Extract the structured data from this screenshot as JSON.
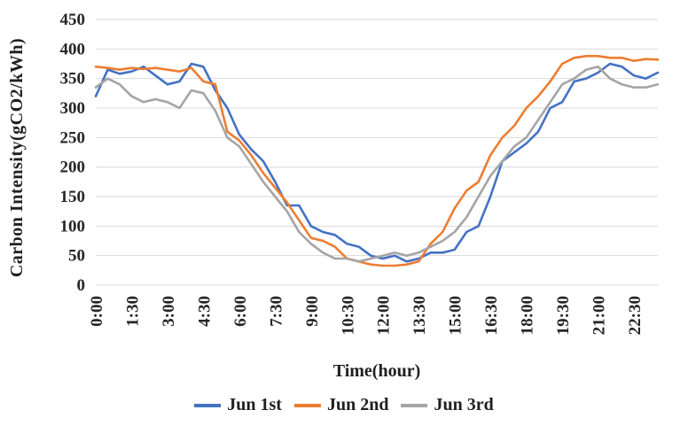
{
  "chart_data": {
    "type": "line",
    "title": "",
    "xlabel": "Time(hour)",
    "ylabel": "Carbon Intensity(gCO2/kWh)",
    "ylim": [
      0,
      450
    ],
    "ytick_step": 50,
    "grid": "horizontal",
    "legend_position": "bottom",
    "x": [
      "0:00",
      "0:30",
      "1:00",
      "1:30",
      "2:00",
      "2:30",
      "3:00",
      "3:30",
      "4:00",
      "4:30",
      "5:00",
      "5:30",
      "6:00",
      "6:30",
      "7:00",
      "7:30",
      "8:00",
      "8:30",
      "9:00",
      "9:30",
      "10:00",
      "10:30",
      "11:00",
      "11:30",
      "12:00",
      "12:30",
      "13:00",
      "13:30",
      "14:00",
      "14:30",
      "15:00",
      "15:30",
      "16:00",
      "16:30",
      "17:00",
      "17:30",
      "18:00",
      "18:30",
      "19:00",
      "19:30",
      "20:00",
      "20:30",
      "21:00",
      "21:30",
      "22:00",
      "22:30",
      "23:00",
      "23:30"
    ],
    "xtick_labels": [
      "0:00",
      "1:30",
      "3:00",
      "4:30",
      "6:00",
      "7:30",
      "9:00",
      "10:30",
      "12:00",
      "13:30",
      "15:00",
      "16:30",
      "18:00",
      "19:30",
      "21:00",
      "22:30"
    ],
    "xtick_every": 3,
    "series": [
      {
        "name": "Jun 1st",
        "color": "#4472C4",
        "values": [
          320,
          365,
          358,
          362,
          370,
          355,
          340,
          345,
          375,
          370,
          330,
          300,
          255,
          230,
          210,
          175,
          135,
          135,
          100,
          90,
          85,
          70,
          65,
          50,
          45,
          50,
          40,
          45,
          55,
          55,
          60,
          90,
          100,
          150,
          210,
          225,
          240,
          260,
          300,
          310,
          345,
          350,
          360,
          375,
          370,
          355,
          350,
          360
        ]
      },
      {
        "name": "Jun 2nd",
        "color": "#ED7D31",
        "values": [
          370,
          368,
          365,
          368,
          366,
          368,
          365,
          362,
          368,
          345,
          340,
          260,
          245,
          220,
          190,
          165,
          140,
          110,
          80,
          75,
          65,
          45,
          40,
          35,
          33,
          33,
          35,
          40,
          70,
          90,
          130,
          160,
          175,
          220,
          250,
          270,
          300,
          320,
          345,
          375,
          385,
          388,
          388,
          385,
          385,
          380,
          383,
          382
        ]
      },
      {
        "name": "Jun 3rd",
        "color": "#A5A5A5",
        "values": [
          335,
          350,
          340,
          320,
          310,
          315,
          310,
          300,
          330,
          325,
          295,
          250,
          235,
          205,
          175,
          150,
          125,
          90,
          70,
          55,
          45,
          45,
          40,
          45,
          50,
          55,
          50,
          55,
          65,
          75,
          90,
          115,
          150,
          185,
          210,
          235,
          250,
          280,
          310,
          340,
          350,
          365,
          370,
          350,
          340,
          335,
          335,
          340
        ]
      }
    ]
  }
}
